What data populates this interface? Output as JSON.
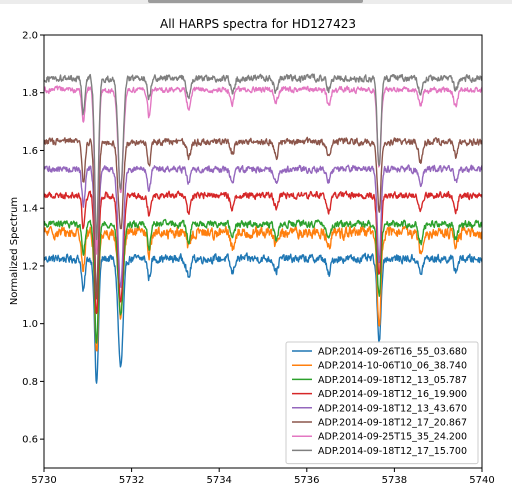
{
  "chart_data": {
    "type": "line",
    "title": "All HARPS spectra for HD127423",
    "xlabel": "",
    "ylabel": "Normalized Spectrum",
    "xlim": [
      5730,
      5740
    ],
    "ylim": [
      0.5,
      2.0
    ],
    "xticks": [
      "5730",
      "5732",
      "5734",
      "5736",
      "5738",
      "5740"
    ],
    "yticks": [
      "0.6",
      "0.8",
      "1.0",
      "1.2",
      "1.4",
      "1.6",
      "1.8",
      "2.0"
    ],
    "legend_position": "lower-right",
    "grid": false,
    "absorption_lines": [
      {
        "x": 5731.2,
        "depth": 1.0,
        "width": 0.06
      },
      {
        "x": 5731.75,
        "depth": 0.35,
        "width": 0.08
      },
      {
        "x": 5730.9,
        "depth": 0.12,
        "width": 0.05
      },
      {
        "x": 5732.4,
        "depth": 0.08,
        "width": 0.05
      },
      {
        "x": 5733.3,
        "depth": 0.06,
        "width": 0.06
      },
      {
        "x": 5734.3,
        "depth": 0.05,
        "width": 0.06
      },
      {
        "x": 5735.3,
        "depth": 0.05,
        "width": 0.06
      },
      {
        "x": 5736.5,
        "depth": 0.05,
        "width": 0.06
      },
      {
        "x": 5737.65,
        "depth": 0.28,
        "width": 0.06
      },
      {
        "x": 5738.6,
        "depth": 0.06,
        "width": 0.06
      },
      {
        "x": 5739.4,
        "depth": 0.05,
        "width": 0.06
      }
    ],
    "series": [
      {
        "name": "ADP.2014-09-26T16_55_03.680",
        "color": "#1f77b4",
        "baseline": 1.225,
        "min": 0.79,
        "noise": 0.022
      },
      {
        "name": "ADP.2014-10-06T10_06_38.740",
        "color": "#ff7f0e",
        "baseline": 1.315,
        "min": 0.9,
        "noise": 0.03
      },
      {
        "name": "ADP.2014-09-18T12_13_05.787",
        "color": "#2ca02c",
        "baseline": 1.345,
        "min": 0.93,
        "noise": 0.018
      },
      {
        "name": "ADP.2014-09-18T12_16_19.900",
        "color": "#d62728",
        "baseline": 1.445,
        "min": 1.03,
        "noise": 0.018
      },
      {
        "name": "ADP.2014-09-18T12_13_43.670",
        "color": "#9467bd",
        "baseline": 1.535,
        "min": 1.1,
        "noise": 0.018
      },
      {
        "name": "ADP.2014-09-18T12_17_20.867",
        "color": "#8c564b",
        "baseline": 1.63,
        "min": 1.1,
        "noise": 0.018
      },
      {
        "name": "ADP.2014-09-25T15_35_24.200",
        "color": "#e377c2",
        "baseline": 1.81,
        "min": 1.25,
        "noise": 0.015
      },
      {
        "name": "ADP.2014-09-18T12_17_15.700",
        "color": "#7f7f7f",
        "baseline": 1.85,
        "min": 1.3,
        "noise": 0.018
      }
    ]
  }
}
